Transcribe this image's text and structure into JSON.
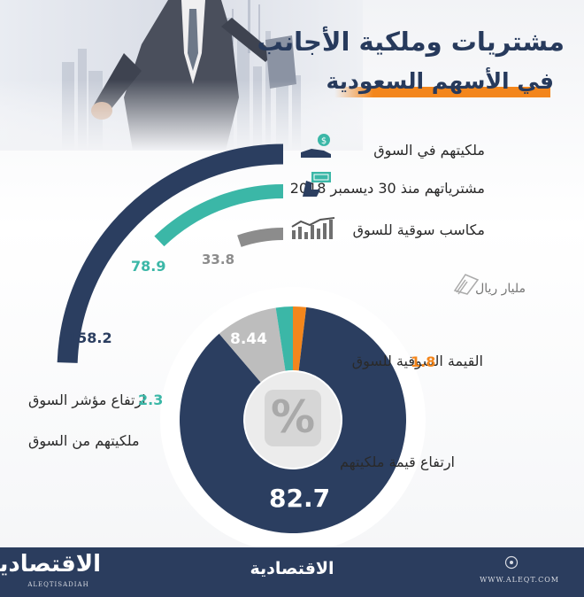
{
  "title": {
    "line1": "مشتريات وملكية الأجانب",
    "line2": "في الأسهم السعودية"
  },
  "unit": "مليار ريال",
  "colors": {
    "navy": "#2b3e60",
    "teal": "#3bb7a7",
    "gray": "#8c8c8c",
    "lightgray": "#bdbdbd",
    "orange": "#f3861c",
    "title": "#273a5c",
    "footer": "#2b3d5e"
  },
  "chart_data": [
    {
      "type": "bar",
      "subtype": "radial",
      "categories": [
        "ملكيتهم في السوق",
        "مشترياتهم منذ 30 ديسمبر 2018",
        "مكاسب سوقية للسوق"
      ],
      "values": [
        158.2,
        78.9,
        33.8
      ],
      "value_labels": [
        "158.2",
        "78.9",
        "33.8"
      ],
      "unit": "مليار ريال",
      "icons": [
        "money-hand-icon",
        "cash-hand-icon",
        "market-chart-icon"
      ]
    },
    {
      "type": "pie",
      "subtype": "donut",
      "categories": [
        "ارتفاع قيمة ملكيتهم",
        "ملكيتهم من السوق",
        "ارتفاع مؤشر السوق",
        "القيمة السوقية للسوق"
      ],
      "values": [
        82.7,
        8.44,
        2.3,
        1.8
      ],
      "value_labels": [
        "82.7",
        "8.44",
        "2.3",
        "1.8"
      ],
      "center_icon": "percent-icon"
    }
  ],
  "footer": {
    "logo_text": "الاقتصادية",
    "logo_latin": "ALEQTISADIAH",
    "center_logo": "الاقتصادية",
    "website": "WWW.ALEQT.COM"
  }
}
